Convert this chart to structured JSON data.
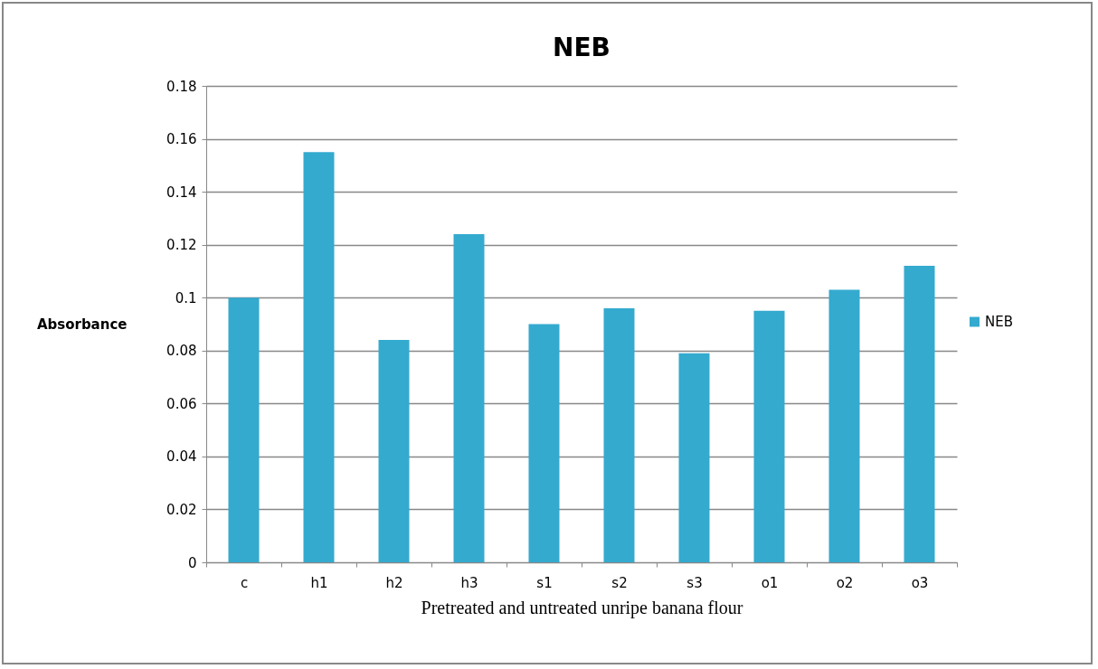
{
  "chart_data": {
    "type": "bar",
    "title": "NEB",
    "xlabel": "Pretreated and untreated unripe banana flour",
    "ylabel": "Absorbance",
    "categories": [
      "c",
      "h1",
      "h2",
      "h3",
      "s1",
      "s2",
      "s3",
      "o1",
      "o2",
      "o3"
    ],
    "series": [
      {
        "name": "NEB",
        "color": "#34aacf",
        "values": [
          0.1,
          0.155,
          0.084,
          0.124,
          0.09,
          0.096,
          0.079,
          0.095,
          0.103,
          0.112
        ]
      }
    ],
    "ylim": [
      0,
      0.18
    ],
    "yticks": [
      {
        "value": 0,
        "label": "0"
      },
      0.02,
      0.04,
      0.06,
      0.08,
      {
        "value": 0.1,
        "label": "0.1"
      },
      0.12,
      0.14,
      0.16,
      0.18
    ],
    "grid": "y",
    "legend": "right"
  }
}
